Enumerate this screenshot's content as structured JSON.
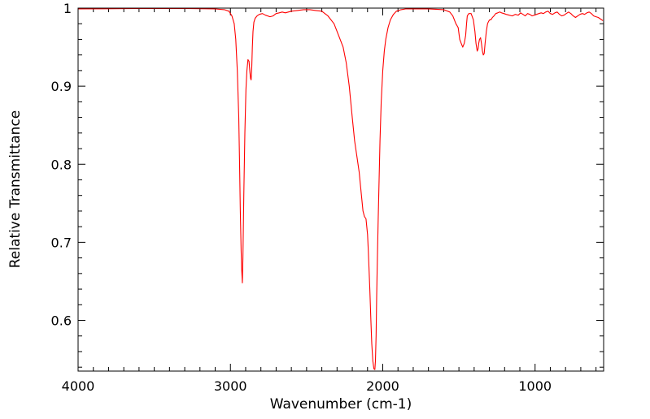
{
  "chart_data": {
    "type": "line",
    "title": "",
    "xlabel": "Wavenumber (cm-1)",
    "ylabel": "Relative Transmittance",
    "xlim": [
      4000,
      550
    ],
    "ylim": [
      0.535,
      1.0
    ],
    "x_reversed": true,
    "grid": false,
    "legend": "none",
    "line_color": "#ff0000",
    "x_ticks": [
      {
        "value": 4000,
        "label": "4000"
      },
      {
        "value": 3000,
        "label": "3000"
      },
      {
        "value": 2000,
        "label": "2000"
      },
      {
        "value": 1000,
        "label": "1000"
      }
    ],
    "y_ticks": [
      {
        "value": 1.0,
        "label": "1"
      },
      {
        "value": 0.9,
        "label": "0.9"
      },
      {
        "value": 0.8,
        "label": "0.8"
      },
      {
        "value": 0.7,
        "label": "0.7"
      },
      {
        "value": 0.6,
        "label": "0.6"
      }
    ],
    "series": [
      {
        "x": [
          4000,
          3600,
          3300,
          3100,
          3040,
          3010,
          2990,
          2975,
          2965,
          2955,
          2945,
          2940,
          2935,
          2930,
          2926,
          2922,
          2918,
          2912,
          2905,
          2898,
          2892,
          2885,
          2878,
          2872,
          2868,
          2864,
          2860,
          2856,
          2852,
          2846,
          2838,
          2825,
          2810,
          2790,
          2770,
          2740,
          2720,
          2700,
          2680,
          2660,
          2640,
          2620,
          2600,
          2560,
          2520,
          2480,
          2440,
          2400,
          2360,
          2320,
          2290,
          2260,
          2240,
          2220,
          2200,
          2185,
          2170,
          2155,
          2140,
          2130,
          2120,
          2110,
          2100,
          2095,
          2085,
          2078,
          2072,
          2065,
          2058,
          2052,
          2048,
          2044,
          2040,
          2035,
          2030,
          2024,
          2018,
          2010,
          2000,
          1990,
          1980,
          1965,
          1950,
          1930,
          1910,
          1880,
          1850,
          1800,
          1750,
          1700,
          1650,
          1600,
          1560,
          1540,
          1520,
          1505,
          1495,
          1485,
          1475,
          1465,
          1456,
          1450,
          1445,
          1435,
          1420,
          1405,
          1395,
          1388,
          1380,
          1374,
          1370,
          1365,
          1358,
          1352,
          1346,
          1340,
          1334,
          1328,
          1320,
          1312,
          1305,
          1298,
          1290,
          1280,
          1270,
          1258,
          1245,
          1232,
          1220,
          1205,
          1190,
          1170,
          1150,
          1130,
          1110,
          1095,
          1080,
          1065,
          1050,
          1035,
          1020,
          1005,
          990,
          975,
          960,
          945,
          930,
          915,
          900,
          885,
          870,
          855,
          840,
          825,
          810,
          795,
          780,
          765,
          750,
          735,
          720,
          705,
          690,
          675,
          660,
          645,
          630,
          615,
          600,
          585,
          570,
          555
        ],
        "y": [
          0.999,
          0.9995,
          0.9995,
          0.999,
          0.998,
          0.996,
          0.99,
          0.98,
          0.96,
          0.92,
          0.86,
          0.8,
          0.74,
          0.69,
          0.665,
          0.648,
          0.68,
          0.76,
          0.84,
          0.895,
          0.92,
          0.934,
          0.932,
          0.918,
          0.91,
          0.908,
          0.925,
          0.95,
          0.97,
          0.982,
          0.987,
          0.99,
          0.992,
          0.993,
          0.991,
          0.989,
          0.99,
          0.993,
          0.994,
          0.995,
          0.994,
          0.995,
          0.996,
          0.997,
          0.998,
          0.998,
          0.997,
          0.996,
          0.99,
          0.98,
          0.965,
          0.95,
          0.93,
          0.9,
          0.86,
          0.83,
          0.81,
          0.79,
          0.76,
          0.74,
          0.733,
          0.73,
          0.71,
          0.69,
          0.64,
          0.6,
          0.57,
          0.548,
          0.538,
          0.537,
          0.548,
          0.58,
          0.63,
          0.68,
          0.73,
          0.78,
          0.83,
          0.88,
          0.92,
          0.945,
          0.96,
          0.975,
          0.985,
          0.992,
          0.996,
          0.998,
          0.999,
          0.999,
          0.999,
          0.999,
          0.9985,
          0.998,
          0.995,
          0.99,
          0.98,
          0.975,
          0.96,
          0.955,
          0.95,
          0.955,
          0.965,
          0.98,
          0.99,
          0.993,
          0.993,
          0.985,
          0.97,
          0.955,
          0.945,
          0.948,
          0.955,
          0.96,
          0.962,
          0.955,
          0.945,
          0.94,
          0.942,
          0.955,
          0.97,
          0.98,
          0.983,
          0.985,
          0.985,
          0.988,
          0.99,
          0.993,
          0.994,
          0.995,
          0.994,
          0.993,
          0.992,
          0.991,
          0.99,
          0.992,
          0.991,
          0.994,
          0.992,
          0.99,
          0.993,
          0.992,
          0.99,
          0.991,
          0.992,
          0.993,
          0.994,
          0.993,
          0.995,
          0.996,
          0.993,
          0.992,
          0.994,
          0.995,
          0.992,
          0.99,
          0.991,
          0.993,
          0.995,
          0.993,
          0.99,
          0.988,
          0.99,
          0.992,
          0.993,
          0.992,
          0.994,
          0.995,
          0.993,
          0.99,
          0.989,
          0.988,
          0.986,
          0.984
        ]
      }
    ]
  }
}
